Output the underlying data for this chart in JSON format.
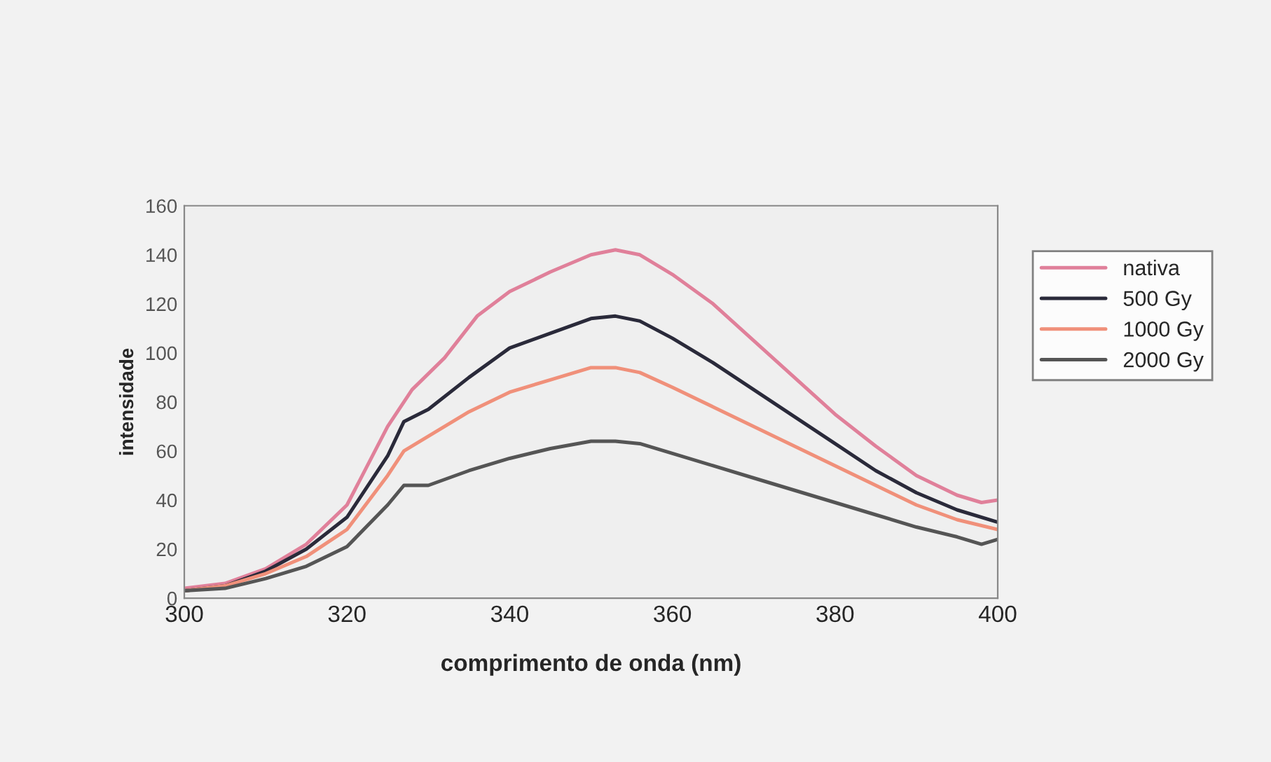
{
  "chart_data": {
    "type": "line",
    "xlabel": "comprimento de onda (nm)",
    "ylabel": "intensidade",
    "xlim": [
      300,
      400
    ],
    "xticks": [
      300,
      320,
      340,
      360,
      380,
      400
    ],
    "ylim": [
      0,
      160
    ],
    "yticks": [
      0,
      20,
      40,
      60,
      80,
      100,
      120,
      140,
      160
    ],
    "grid": false,
    "legend": "right",
    "marker": "none",
    "line_style": "solid",
    "series": [
      {
        "name": "nativa",
        "color": "#e0809a",
        "x": [
          300,
          305,
          310,
          315,
          320,
          325,
          328,
          332,
          336,
          340,
          345,
          350,
          353,
          356,
          360,
          365,
          370,
          375,
          380,
          385,
          390,
          395,
          398,
          400
        ],
        "values": [
          4,
          6,
          12,
          22,
          38,
          70,
          85,
          98,
          115,
          125,
          133,
          140,
          142,
          140,
          132,
          120,
          105,
          90,
          75,
          62,
          50,
          42,
          39,
          40
        ]
      },
      {
        "name": "500 Gy",
        "color": "#2a2a3a",
        "x": [
          300,
          305,
          310,
          315,
          320,
          325,
          327,
          330,
          335,
          340,
          345,
          350,
          353,
          356,
          360,
          365,
          370,
          375,
          380,
          385,
          390,
          395,
          400
        ],
        "values": [
          3,
          5,
          11,
          20,
          33,
          58,
          72,
          77,
          90,
          102,
          108,
          114,
          115,
          113,
          106,
          96,
          85,
          74,
          63,
          52,
          43,
          36,
          31
        ]
      },
      {
        "name": "1000 Gy",
        "color": "#f0907a",
        "x": [
          300,
          305,
          310,
          315,
          320,
          325,
          327,
          330,
          335,
          340,
          345,
          350,
          353,
          356,
          360,
          365,
          370,
          375,
          380,
          385,
          390,
          395,
          400
        ],
        "values": [
          3,
          5,
          10,
          17,
          28,
          50,
          60,
          66,
          76,
          84,
          89,
          94,
          94,
          92,
          86,
          78,
          70,
          62,
          54,
          46,
          38,
          32,
          28
        ]
      },
      {
        "name": "2000 Gy",
        "color": "#555555",
        "x": [
          300,
          305,
          310,
          315,
          320,
          325,
          327,
          330,
          335,
          340,
          345,
          350,
          353,
          356,
          360,
          365,
          370,
          375,
          380,
          385,
          390,
          395,
          398,
          400
        ],
        "values": [
          3,
          4,
          8,
          13,
          21,
          38,
          46,
          46,
          52,
          57,
          61,
          64,
          64,
          63,
          59,
          54,
          49,
          44,
          39,
          34,
          29,
          25,
          22,
          24
        ]
      }
    ]
  }
}
